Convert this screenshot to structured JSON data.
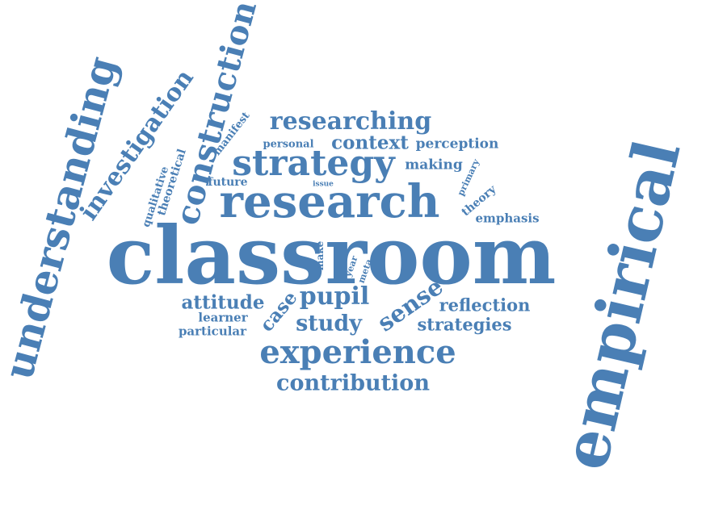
{
  "word_color": "#4a7fb5",
  "words": [
    {
      "text": "classroom"
    },
    {
      "text": "empirical"
    },
    {
      "text": "research"
    },
    {
      "text": "understanding"
    },
    {
      "text": "construction"
    },
    {
      "text": "strategy"
    },
    {
      "text": "experience"
    },
    {
      "text": "investigation"
    },
    {
      "text": "researching"
    },
    {
      "text": "contribution"
    },
    {
      "text": "pupil"
    },
    {
      "text": "study"
    },
    {
      "text": "sense"
    },
    {
      "text": "attitude"
    },
    {
      "text": "reflection"
    },
    {
      "text": "strategies"
    },
    {
      "text": "context"
    },
    {
      "text": "perception"
    },
    {
      "text": "case"
    },
    {
      "text": "making"
    },
    {
      "text": "emphasis"
    },
    {
      "text": "learner"
    },
    {
      "text": "particular"
    },
    {
      "text": "personal"
    },
    {
      "text": "theoretical"
    },
    {
      "text": "qualitative"
    },
    {
      "text": "manifest"
    },
    {
      "text": "future"
    },
    {
      "text": "theory"
    },
    {
      "text": "primary"
    },
    {
      "text": "issue"
    },
    {
      "text": "make"
    },
    {
      "text": "year"
    },
    {
      "text": "meta"
    }
  ]
}
